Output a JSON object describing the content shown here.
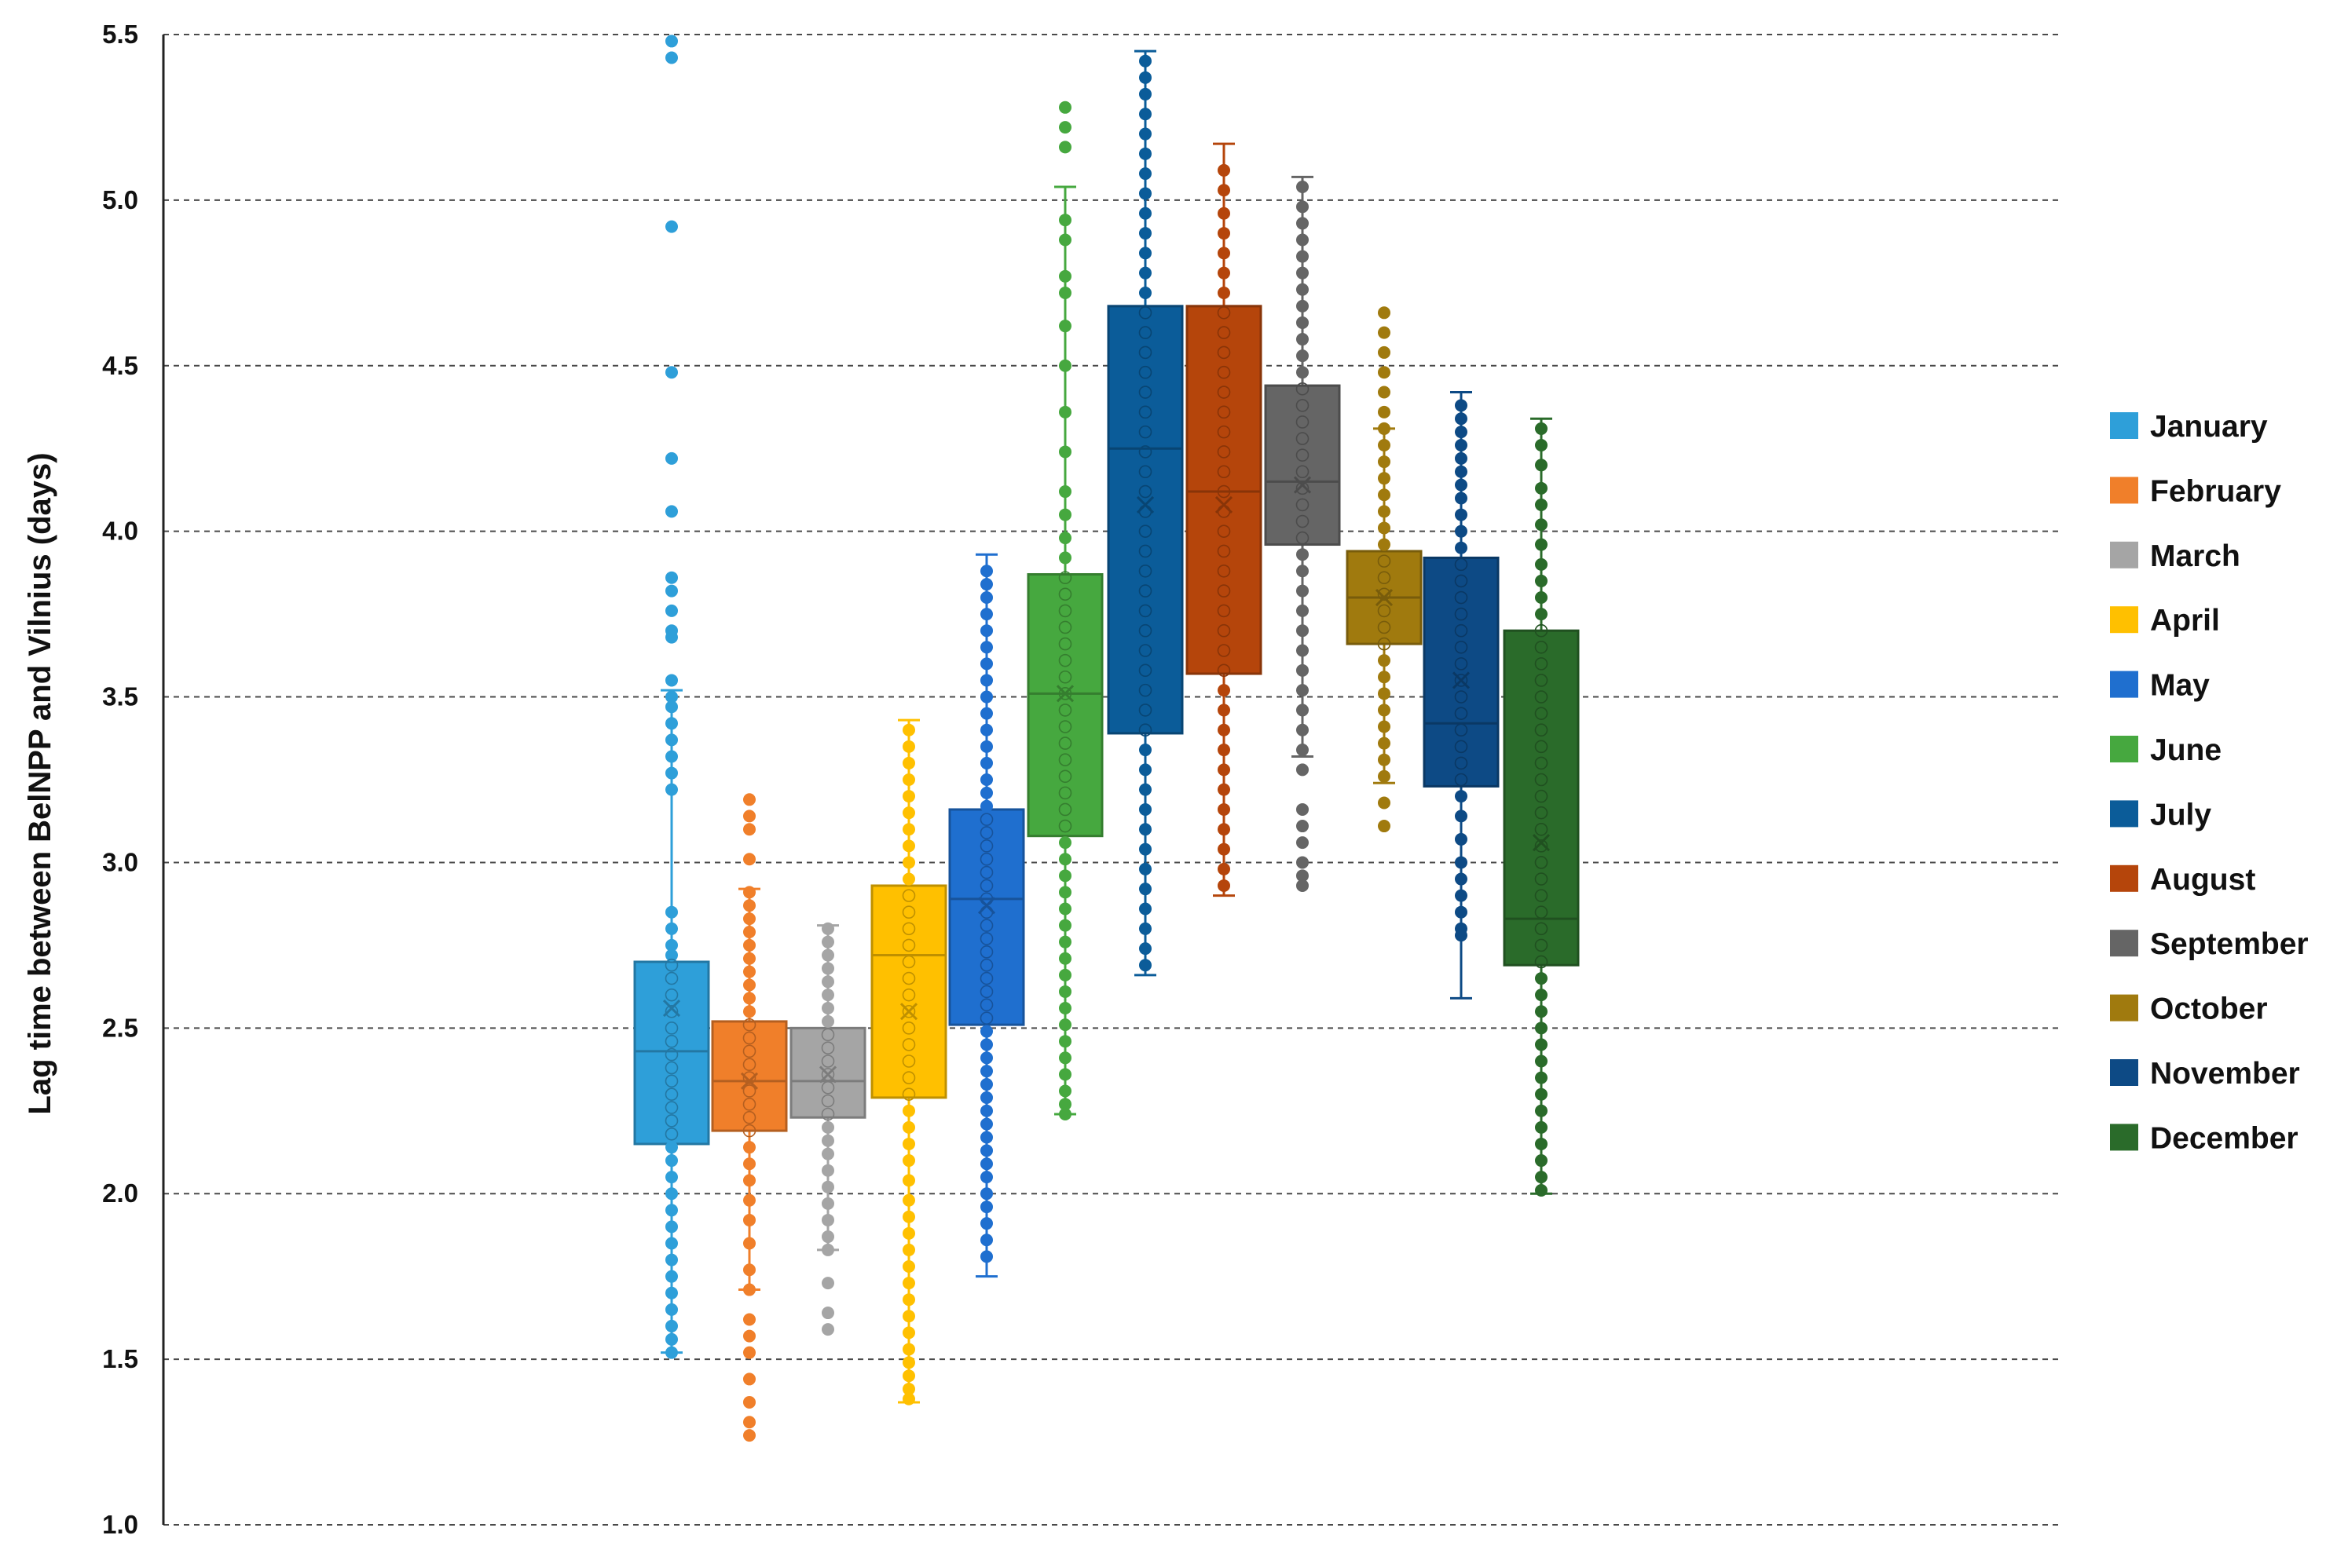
{
  "chart_data": {
    "type": "box",
    "title": "",
    "xlabel": "",
    "ylabel": "Lag time between BelNPP and Vilnius (days)",
    "ylim": [
      1.0,
      5.5
    ],
    "yticks": [
      "1.0",
      "1.5",
      "2.0",
      "2.5",
      "3.0",
      "3.5",
      "4.0",
      "4.5",
      "5.0",
      "5.5"
    ],
    "grid": "horizontal dashed",
    "legend_position": "right",
    "series": [
      {
        "name": "January",
        "color": "#2E9FD9",
        "q1": 2.15,
        "median": 2.43,
        "q3": 2.7,
        "mean": 2.56,
        "whisker_low": 1.52,
        "whisker_high": 3.52,
        "points": [
          5.48,
          5.43,
          4.92,
          4.48,
          4.22,
          4.06,
          3.86,
          3.82,
          3.76,
          3.7,
          3.68,
          3.55,
          3.5,
          3.47,
          3.42,
          3.37,
          3.32,
          3.27,
          3.22,
          2.85,
          2.8,
          2.75,
          2.72,
          2.69,
          2.65,
          2.6,
          2.55,
          2.5,
          2.46,
          2.42,
          2.38,
          2.34,
          2.3,
          2.26,
          2.22,
          2.18,
          2.14,
          2.1,
          2.05,
          2.0,
          1.95,
          1.9,
          1.85,
          1.8,
          1.75,
          1.7,
          1.65,
          1.6,
          1.56,
          1.52
        ]
      },
      {
        "name": "February",
        "color": "#F07F2A",
        "q1": 2.19,
        "median": 2.34,
        "q3": 2.52,
        "mean": 2.34,
        "whisker_low": 1.71,
        "whisker_high": 2.92,
        "points": [
          3.19,
          3.14,
          3.1,
          3.01,
          2.91,
          2.87,
          2.83,
          2.79,
          2.75,
          2.71,
          2.67,
          2.63,
          2.59,
          2.55,
          2.51,
          2.47,
          2.43,
          2.39,
          2.35,
          2.31,
          2.27,
          2.23,
          2.19,
          2.14,
          2.09,
          2.04,
          1.98,
          1.92,
          1.85,
          1.77,
          1.71,
          1.62,
          1.57,
          1.52,
          1.44,
          1.37,
          1.31,
          1.27
        ]
      },
      {
        "name": "March",
        "color": "#A5A5A5",
        "q1": 2.23,
        "median": 2.34,
        "q3": 2.5,
        "mean": 2.36,
        "whisker_low": 1.83,
        "whisker_high": 2.81,
        "points": [
          2.8,
          2.76,
          2.72,
          2.68,
          2.64,
          2.6,
          2.56,
          2.52,
          2.48,
          2.44,
          2.4,
          2.36,
          2.32,
          2.28,
          2.24,
          2.2,
          2.16,
          2.12,
          2.07,
          2.02,
          1.97,
          1.92,
          1.87,
          1.83,
          1.73,
          1.64,
          1.59
        ]
      },
      {
        "name": "April",
        "color": "#FFC000",
        "q1": 2.29,
        "median": 2.72,
        "q3": 2.93,
        "mean": 2.55,
        "whisker_low": 1.37,
        "whisker_high": 3.43,
        "points": [
          3.4,
          3.35,
          3.3,
          3.25,
          3.2,
          3.15,
          3.1,
          3.05,
          3.0,
          2.95,
          2.9,
          2.85,
          2.8,
          2.75,
          2.7,
          2.65,
          2.6,
          2.55,
          2.5,
          2.45,
          2.4,
          2.35,
          2.3,
          2.25,
          2.2,
          2.15,
          2.1,
          2.04,
          1.98,
          1.93,
          1.88,
          1.83,
          1.78,
          1.73,
          1.68,
          1.63,
          1.58,
          1.53,
          1.49,
          1.45,
          1.41,
          1.38
        ]
      },
      {
        "name": "May",
        "color": "#1F6FCF",
        "q1": 2.51,
        "median": 2.89,
        "q3": 3.16,
        "mean": 2.87,
        "whisker_low": 1.75,
        "whisker_high": 3.93,
        "points": [
          3.88,
          3.84,
          3.8,
          3.75,
          3.7,
          3.65,
          3.6,
          3.55,
          3.5,
          3.45,
          3.4,
          3.35,
          3.3,
          3.25,
          3.21,
          3.17,
          3.13,
          3.09,
          3.05,
          3.01,
          2.97,
          2.93,
          2.89,
          2.85,
          2.81,
          2.77,
          2.73,
          2.69,
          2.65,
          2.61,
          2.57,
          2.53,
          2.49,
          2.45,
          2.41,
          2.37,
          2.33,
          2.29,
          2.25,
          2.21,
          2.17,
          2.13,
          2.09,
          2.05,
          2.0,
          1.96,
          1.91,
          1.86,
          1.81
        ]
      },
      {
        "name": "June",
        "color": "#46A83F",
        "q1": 3.08,
        "median": 3.51,
        "q3": 3.87,
        "mean": 3.51,
        "whisker_low": 2.24,
        "whisker_high": 5.04,
        "points": [
          5.28,
          5.22,
          5.16,
          4.94,
          4.88,
          4.77,
          4.72,
          4.62,
          4.5,
          4.36,
          4.24,
          4.12,
          4.05,
          3.98,
          3.92,
          3.86,
          3.81,
          3.76,
          3.71,
          3.66,
          3.61,
          3.56,
          3.51,
          3.46,
          3.41,
          3.36,
          3.31,
          3.26,
          3.21,
          3.16,
          3.11,
          3.06,
          3.01,
          2.96,
          2.91,
          2.86,
          2.81,
          2.76,
          2.71,
          2.66,
          2.61,
          2.56,
          2.51,
          2.46,
          2.41,
          2.36,
          2.31,
          2.27,
          2.24
        ]
      },
      {
        "name": "July",
        "color": "#0B5C99",
        "q1": 3.39,
        "median": 4.25,
        "q3": 4.68,
        "mean": 4.08,
        "whisker_low": 2.66,
        "whisker_high": 5.45,
        "points": [
          5.42,
          5.37,
          5.32,
          5.26,
          5.2,
          5.14,
          5.08,
          5.02,
          4.96,
          4.9,
          4.84,
          4.78,
          4.72,
          4.66,
          4.6,
          4.54,
          4.48,
          4.42,
          4.36,
          4.3,
          4.24,
          4.18,
          4.12,
          4.06,
          4.0,
          3.94,
          3.88,
          3.82,
          3.76,
          3.7,
          3.64,
          3.58,
          3.52,
          3.46,
          3.4,
          3.34,
          3.28,
          3.22,
          3.16,
          3.1,
          3.04,
          2.98,
          2.92,
          2.86,
          2.8,
          2.74,
          2.69
        ]
      },
      {
        "name": "August",
        "color": "#B5450B",
        "q1": 3.57,
        "median": 4.12,
        "q3": 4.68,
        "mean": 4.08,
        "whisker_low": 2.9,
        "whisker_high": 5.17,
        "points": [
          5.09,
          5.03,
          4.96,
          4.9,
          4.84,
          4.78,
          4.72,
          4.66,
          4.6,
          4.54,
          4.48,
          4.42,
          4.36,
          4.3,
          4.24,
          4.18,
          4.12,
          4.06,
          4.0,
          3.94,
          3.88,
          3.82,
          3.76,
          3.7,
          3.64,
          3.58,
          3.52,
          3.46,
          3.4,
          3.34,
          3.28,
          3.22,
          3.16,
          3.1,
          3.04,
          2.98,
          2.93
        ]
      },
      {
        "name": "September",
        "color": "#656565",
        "q1": 3.96,
        "median": 4.15,
        "q3": 4.44,
        "mean": 4.14,
        "whisker_low": 3.32,
        "whisker_high": 5.07,
        "points": [
          5.04,
          4.98,
          4.93,
          4.88,
          4.83,
          4.78,
          4.73,
          4.68,
          4.63,
          4.58,
          4.53,
          4.48,
          4.43,
          4.38,
          4.33,
          4.28,
          4.23,
          4.18,
          4.13,
          4.08,
          4.03,
          3.98,
          3.93,
          3.88,
          3.82,
          3.76,
          3.7,
          3.64,
          3.58,
          3.52,
          3.46,
          3.4,
          3.34,
          3.28,
          3.16,
          3.11,
          3.06,
          3.0,
          2.96,
          2.93
        ]
      },
      {
        "name": "October",
        "color": "#A07A0E",
        "q1": 3.66,
        "median": 3.8,
        "q3": 3.94,
        "mean": 3.8,
        "whisker_low": 3.24,
        "whisker_high": 4.31,
        "points": [
          4.66,
          4.6,
          4.54,
          4.48,
          4.42,
          4.36,
          4.31,
          4.26,
          4.21,
          4.16,
          4.11,
          4.06,
          4.01,
          3.96,
          3.91,
          3.86,
          3.81,
          3.76,
          3.71,
          3.66,
          3.61,
          3.56,
          3.51,
          3.46,
          3.41,
          3.36,
          3.31,
          3.26,
          3.18,
          3.11
        ]
      },
      {
        "name": "November",
        "color": "#0D4A85",
        "q1": 3.23,
        "median": 3.42,
        "q3": 3.92,
        "mean": 3.55,
        "whisker_low": 2.59,
        "whisker_high": 4.42,
        "points": [
          4.38,
          4.34,
          4.3,
          4.26,
          4.22,
          4.18,
          4.14,
          4.1,
          4.05,
          4.0,
          3.95,
          3.9,
          3.85,
          3.8,
          3.75,
          3.7,
          3.65,
          3.6,
          3.55,
          3.5,
          3.45,
          3.4,
          3.35,
          3.3,
          3.25,
          3.2,
          3.14,
          3.07,
          3.0,
          2.95,
          2.9,
          2.85,
          2.8,
          2.78
        ]
      },
      {
        "name": "December",
        "color": "#2A6B2A",
        "q1": 2.69,
        "median": 2.83,
        "q3": 3.7,
        "mean": 3.06,
        "whisker_low": 2.0,
        "whisker_high": 4.34,
        "points": [
          4.31,
          4.26,
          4.2,
          4.13,
          4.08,
          4.02,
          3.96,
          3.9,
          3.85,
          3.8,
          3.75,
          3.7,
          3.65,
          3.6,
          3.55,
          3.5,
          3.45,
          3.4,
          3.35,
          3.3,
          3.25,
          3.2,
          3.15,
          3.1,
          3.05,
          3.0,
          2.95,
          2.9,
          2.85,
          2.8,
          2.75,
          2.7,
          2.65,
          2.6,
          2.55,
          2.5,
          2.45,
          2.4,
          2.35,
          2.3,
          2.25,
          2.2,
          2.15,
          2.1,
          2.05,
          2.01
        ]
      }
    ]
  }
}
